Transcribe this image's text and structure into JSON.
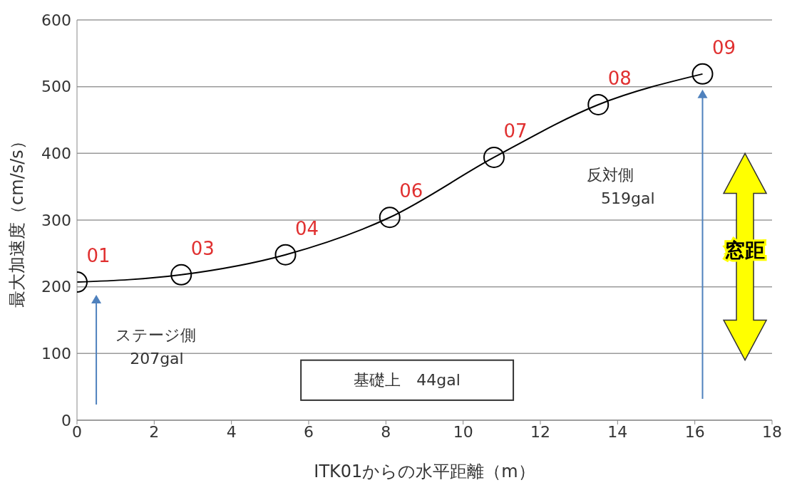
{
  "chart_data": {
    "type": "line",
    "xlabel": "ITK01からの水平距離（m）",
    "ylabel": "最大加速度（cm/s/s）",
    "x": [
      0,
      2.7,
      5.4,
      8.1,
      10.8,
      13.5,
      16.2
    ],
    "series": [
      {
        "color": "#000000",
        "values": [
          207,
          218,
          248,
          304,
          394,
          473,
          519
        ]
      }
    ],
    "xlim": [
      0,
      18
    ],
    "xticks": [
      0,
      2,
      4,
      6,
      8,
      10,
      12,
      14,
      16,
      18
    ],
    "ylim": [
      0,
      600
    ],
    "yticks": [
      0,
      100,
      200,
      300,
      400,
      500,
      600
    ],
    "grid": "y",
    "marker": "circle",
    "line_style": "solid",
    "annotations": [
      {
        "text": "01",
        "x": 0,
        "y": 207
      },
      {
        "text": "03",
        "x": 2.7,
        "y": 218
      },
      {
        "text": "04",
        "x": 5.4,
        "y": 248
      },
      {
        "text": "06",
        "x": 8.1,
        "y": 304
      },
      {
        "text": "07",
        "x": 10.8,
        "y": 394
      },
      {
        "text": "08",
        "x": 13.5,
        "y": 473
      },
      {
        "text": "09",
        "x": 16.2,
        "y": 519
      },
      "ステージ側\n207gal",
      "反対側\n519gal",
      "基礎上　44gal",
      "窓距"
    ]
  }
}
